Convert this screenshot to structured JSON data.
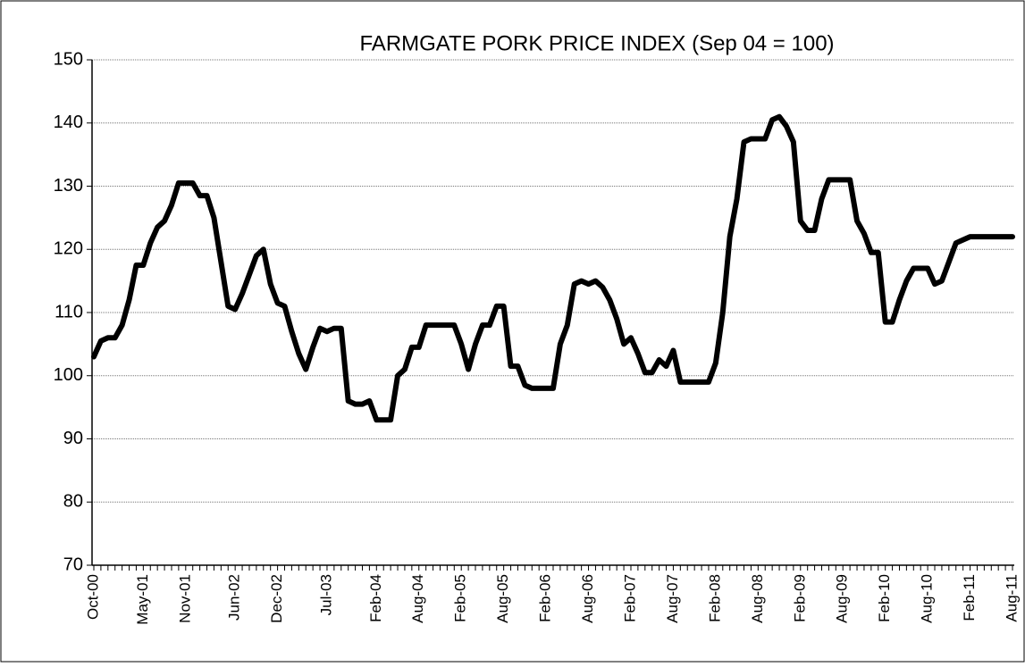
{
  "chart_data": {
    "type": "line",
    "title": "FARMGATE PORK PRICE INDEX (Sep 04 = 100)",
    "categories": [
      "Oct-00",
      null,
      null,
      null,
      null,
      null,
      null,
      "May-01",
      null,
      null,
      null,
      null,
      null,
      "Nov-01",
      null,
      null,
      null,
      null,
      null,
      null,
      "Jun-02",
      null,
      null,
      null,
      null,
      null,
      "Dec-02",
      null,
      null,
      null,
      null,
      null,
      null,
      "Jul-03",
      null,
      null,
      null,
      null,
      null,
      null,
      "Feb-04",
      null,
      null,
      null,
      null,
      null,
      "Aug-04",
      null,
      null,
      null,
      null,
      null,
      "Feb-05",
      null,
      null,
      null,
      null,
      null,
      "Aug-05",
      null,
      null,
      null,
      null,
      null,
      "Feb-06",
      null,
      null,
      null,
      null,
      null,
      "Aug-06",
      null,
      null,
      null,
      null,
      null,
      "Feb-07",
      null,
      null,
      null,
      null,
      null,
      "Aug-07",
      null,
      null,
      null,
      null,
      null,
      "Feb-08",
      null,
      null,
      null,
      null,
      null,
      "Aug-08",
      null,
      null,
      null,
      null,
      null,
      "Feb-09",
      null,
      null,
      null,
      null,
      null,
      "Aug-09",
      null,
      null,
      null,
      null,
      null,
      "Feb-10",
      null,
      null,
      null,
      null,
      null,
      "Aug-10",
      null,
      null,
      null,
      null,
      null,
      "Feb-11",
      null,
      null,
      null,
      null,
      null,
      "Aug-11"
    ],
    "values": [
      103,
      105.5,
      106,
      106,
      108,
      112,
      117.5,
      117.5,
      121,
      123.5,
      124.5,
      127,
      130.5,
      130.5,
      130.5,
      128.5,
      128.5,
      125,
      118,
      111,
      110.5,
      113,
      116,
      119,
      120,
      114.5,
      111.5,
      111,
      107,
      103.5,
      101,
      104.5,
      107.5,
      107,
      107.5,
      107.5,
      96,
      95.5,
      95.5,
      96,
      93,
      93,
      93,
      100,
      101,
      104.5,
      104.5,
      108,
      108,
      108,
      108,
      108,
      105,
      101,
      105,
      108,
      108,
      111,
      111,
      101.5,
      101.5,
      98.5,
      98,
      98,
      98,
      98,
      105,
      108,
      114.5,
      115,
      114.5,
      115,
      114,
      112,
      109,
      105,
      106,
      103.5,
      100.5,
      100.5,
      102.5,
      101.5,
      104,
      99,
      99,
      99,
      99,
      99,
      102,
      110,
      122,
      128,
      137,
      137.5,
      137.5,
      137.5,
      140.5,
      141,
      139.5,
      137,
      124.5,
      123,
      123,
      128,
      131,
      131,
      131,
      131,
      124.5,
      122.5,
      119.5,
      119.5,
      108.5,
      108.5,
      112,
      115,
      117,
      117,
      117,
      114.5,
      115,
      118,
      121,
      121.5,
      122,
      122,
      122,
      122,
      122,
      122,
      122
    ],
    "color": "#000000",
    "ylim": [
      70,
      150
    ],
    "yticks": [
      70,
      80,
      90,
      100,
      110,
      120,
      130,
      140,
      150
    ],
    "grid": true
  }
}
